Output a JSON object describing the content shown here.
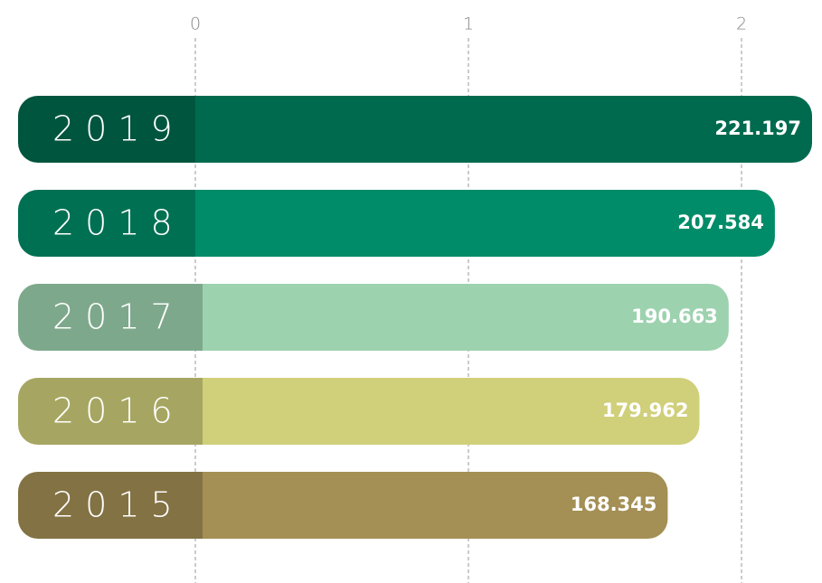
{
  "chart_data": {
    "type": "bar",
    "orientation": "horizontal",
    "categories": [
      "2019",
      "2018",
      "2017",
      "2016",
      "2015"
    ],
    "values": [
      2.21197,
      2.07584,
      1.90663,
      1.79962,
      1.68345
    ],
    "value_labels": [
      "221.197",
      "207.584",
      "190.663",
      "179.962",
      "168.345"
    ],
    "colors": [
      "#006a4e",
      "#008c68",
      "#9dd2af",
      "#d0cf7a",
      "#a48f54"
    ],
    "xlim": [
      0,
      2.29
    ],
    "xticks": [
      0,
      1,
      2
    ],
    "grid": true
  }
}
